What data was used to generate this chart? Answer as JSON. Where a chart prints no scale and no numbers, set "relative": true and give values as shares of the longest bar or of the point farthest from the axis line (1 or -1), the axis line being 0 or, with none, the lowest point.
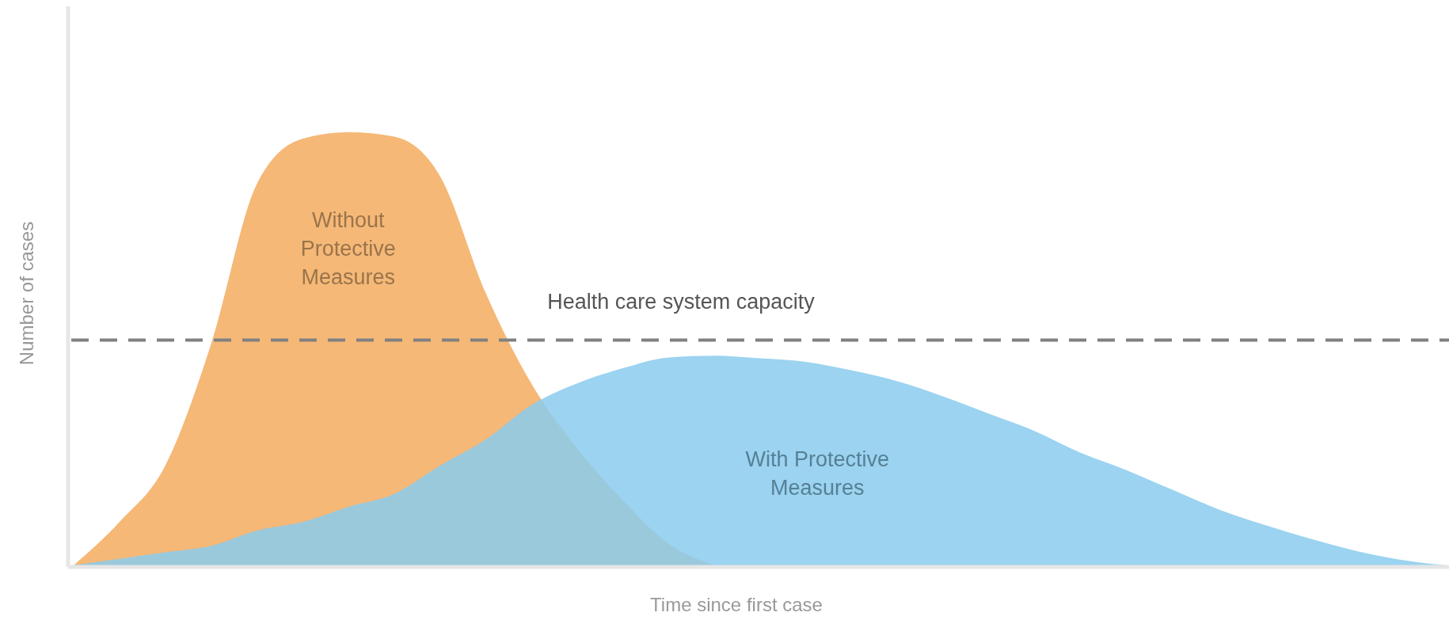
{
  "chart_data": {
    "type": "area",
    "relative": true,
    "xlabel": "Time since first case",
    "ylabel": "Number of cases",
    "categories": [
      null,
      null,
      null,
      null,
      null,
      null,
      null,
      null,
      null,
      null,
      null,
      null,
      null,
      null,
      null,
      null,
      null,
      null,
      null,
      null,
      null,
      null,
      null,
      null,
      null,
      null,
      null,
      null,
      null,
      null,
      null
    ],
    "series": [
      {
        "name": "Without Protective Measures",
        "color": "#f5b877",
        "values": [
          0,
          0.1,
          0.23,
          0.51,
          0.88,
          0.985,
          1,
          0.99,
          0.9,
          0.63,
          0.42,
          0.27,
          0.15,
          0.05,
          0,
          null,
          null,
          null,
          null,
          null,
          null,
          null,
          null,
          null,
          null,
          null,
          null,
          null,
          null,
          null,
          null
        ]
      },
      {
        "name": "With Protective Measures",
        "color": "#89cbed",
        "values": [
          0,
          0.015,
          0.03,
          0.045,
          0.08,
          0.1,
          0.135,
          0.165,
          0.23,
          0.29,
          0.37,
          0.42,
          0.455,
          0.48,
          0.484,
          0.478,
          0.47,
          0.45,
          0.425,
          0.39,
          0.35,
          0.31,
          0.26,
          0.22,
          0.175,
          0.13,
          0.094,
          0.062,
          0.034,
          0.013,
          0
        ]
      }
    ],
    "ref_lines": [
      {
        "axis": "y",
        "value": 0.52,
        "label": "Health care system capacity",
        "color": "#808080",
        "line_style": "dashed"
      }
    ]
  }
}
